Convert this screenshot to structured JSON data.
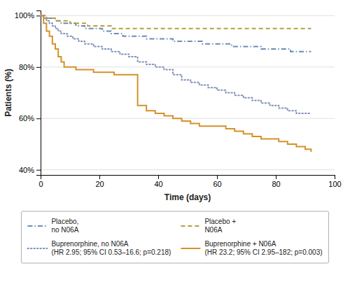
{
  "chart_data": {
    "type": "line",
    "x_label": "Time (days)",
    "y_label": "Patients (%)",
    "xlim": [
      0,
      100
    ],
    "ylim": [
      38,
      102
    ],
    "xticks": [
      0,
      20,
      40,
      60,
      80,
      100
    ],
    "yticks": [
      {
        "value": 40,
        "label": "40%"
      },
      {
        "value": 60,
        "label": "60%"
      },
      {
        "value": 80,
        "label": "80%"
      },
      {
        "value": 100,
        "label": "100%"
      }
    ],
    "grid": "y",
    "series": [
      {
        "name": "Placebo,\nno N06A",
        "color": "#6b8db5",
        "line_style": "dashdot",
        "x": [
          0,
          1,
          2,
          3,
          5,
          7,
          9,
          12,
          15,
          18,
          21,
          24,
          28,
          32,
          36,
          40,
          45,
          50,
          55,
          60,
          65,
          70,
          75,
          80,
          85,
          90,
          92
        ],
        "values": [
          100,
          100,
          99,
          99,
          98,
          97,
          97,
          96,
          95,
          95,
          94,
          93,
          92,
          92,
          91,
          91,
          90,
          90,
          89,
          89,
          88,
          88,
          87,
          87,
          86,
          86,
          86
        ]
      },
      {
        "name": "Placebo +\nN06A",
        "color": "#b5a040",
        "line_style": "dashed",
        "x": [
          0,
          1,
          2,
          3,
          5,
          7,
          10,
          13,
          16,
          20,
          24,
          28,
          32,
          36,
          40,
          45,
          50,
          55,
          60,
          65,
          70,
          75,
          80,
          85,
          90,
          92
        ],
        "values": [
          100,
          100,
          99,
          99,
          98,
          98,
          97,
          97,
          96,
          96,
          95,
          95,
          95,
          95,
          95,
          95,
          95,
          95,
          95,
          95,
          95,
          95,
          95,
          95,
          95,
          95
        ]
      },
      {
        "name": "Buprenorphine, no N06A\n(HR 2.95; 95% CI 0.53–16.6; p=0.218)",
        "color": "#8090b8",
        "line_style": "dotted",
        "x": [
          0,
          1,
          2,
          3,
          4,
          5,
          6,
          7,
          9,
          11,
          13,
          15,
          18,
          21,
          24,
          27,
          30,
          33,
          36,
          39,
          42,
          45,
          48,
          51,
          54,
          57,
          60,
          63,
          66,
          69,
          72,
          75,
          78,
          81,
          84,
          87,
          90,
          92
        ],
        "values": [
          100,
          99,
          98,
          97,
          96,
          95,
          94,
          93,
          92,
          91,
          90,
          89,
          88,
          87,
          86,
          85,
          84,
          82,
          81,
          80,
          79,
          77,
          75,
          74,
          73,
          72,
          71,
          70,
          69,
          68,
          67,
          66,
          65,
          64,
          63,
          62,
          62,
          62
        ]
      },
      {
        "name": "Buprenorphine + N06A\n(HR 23.2; 95% CI 2.95–182; p=0.003)",
        "color": "#d4922a",
        "line_style": "solid",
        "x": [
          0,
          1,
          2,
          3,
          4,
          5,
          6,
          7,
          8,
          10,
          12,
          14,
          16,
          18,
          20,
          22,
          25,
          28,
          30,
          33,
          36,
          39,
          42,
          45,
          48,
          51,
          54,
          57,
          60,
          63,
          66,
          69,
          72,
          75,
          78,
          81,
          84,
          87,
          90,
          92
        ],
        "values": [
          100,
          97,
          94,
          92,
          89,
          87,
          84,
          82,
          80,
          80,
          79,
          79,
          79,
          78,
          78,
          78,
          77,
          77,
          77,
          65,
          63,
          62,
          61,
          60,
          59,
          58,
          57,
          57,
          57,
          56,
          55,
          54,
          53,
          52,
          52,
          51,
          50,
          49,
          48,
          47
        ]
      }
    ]
  }
}
